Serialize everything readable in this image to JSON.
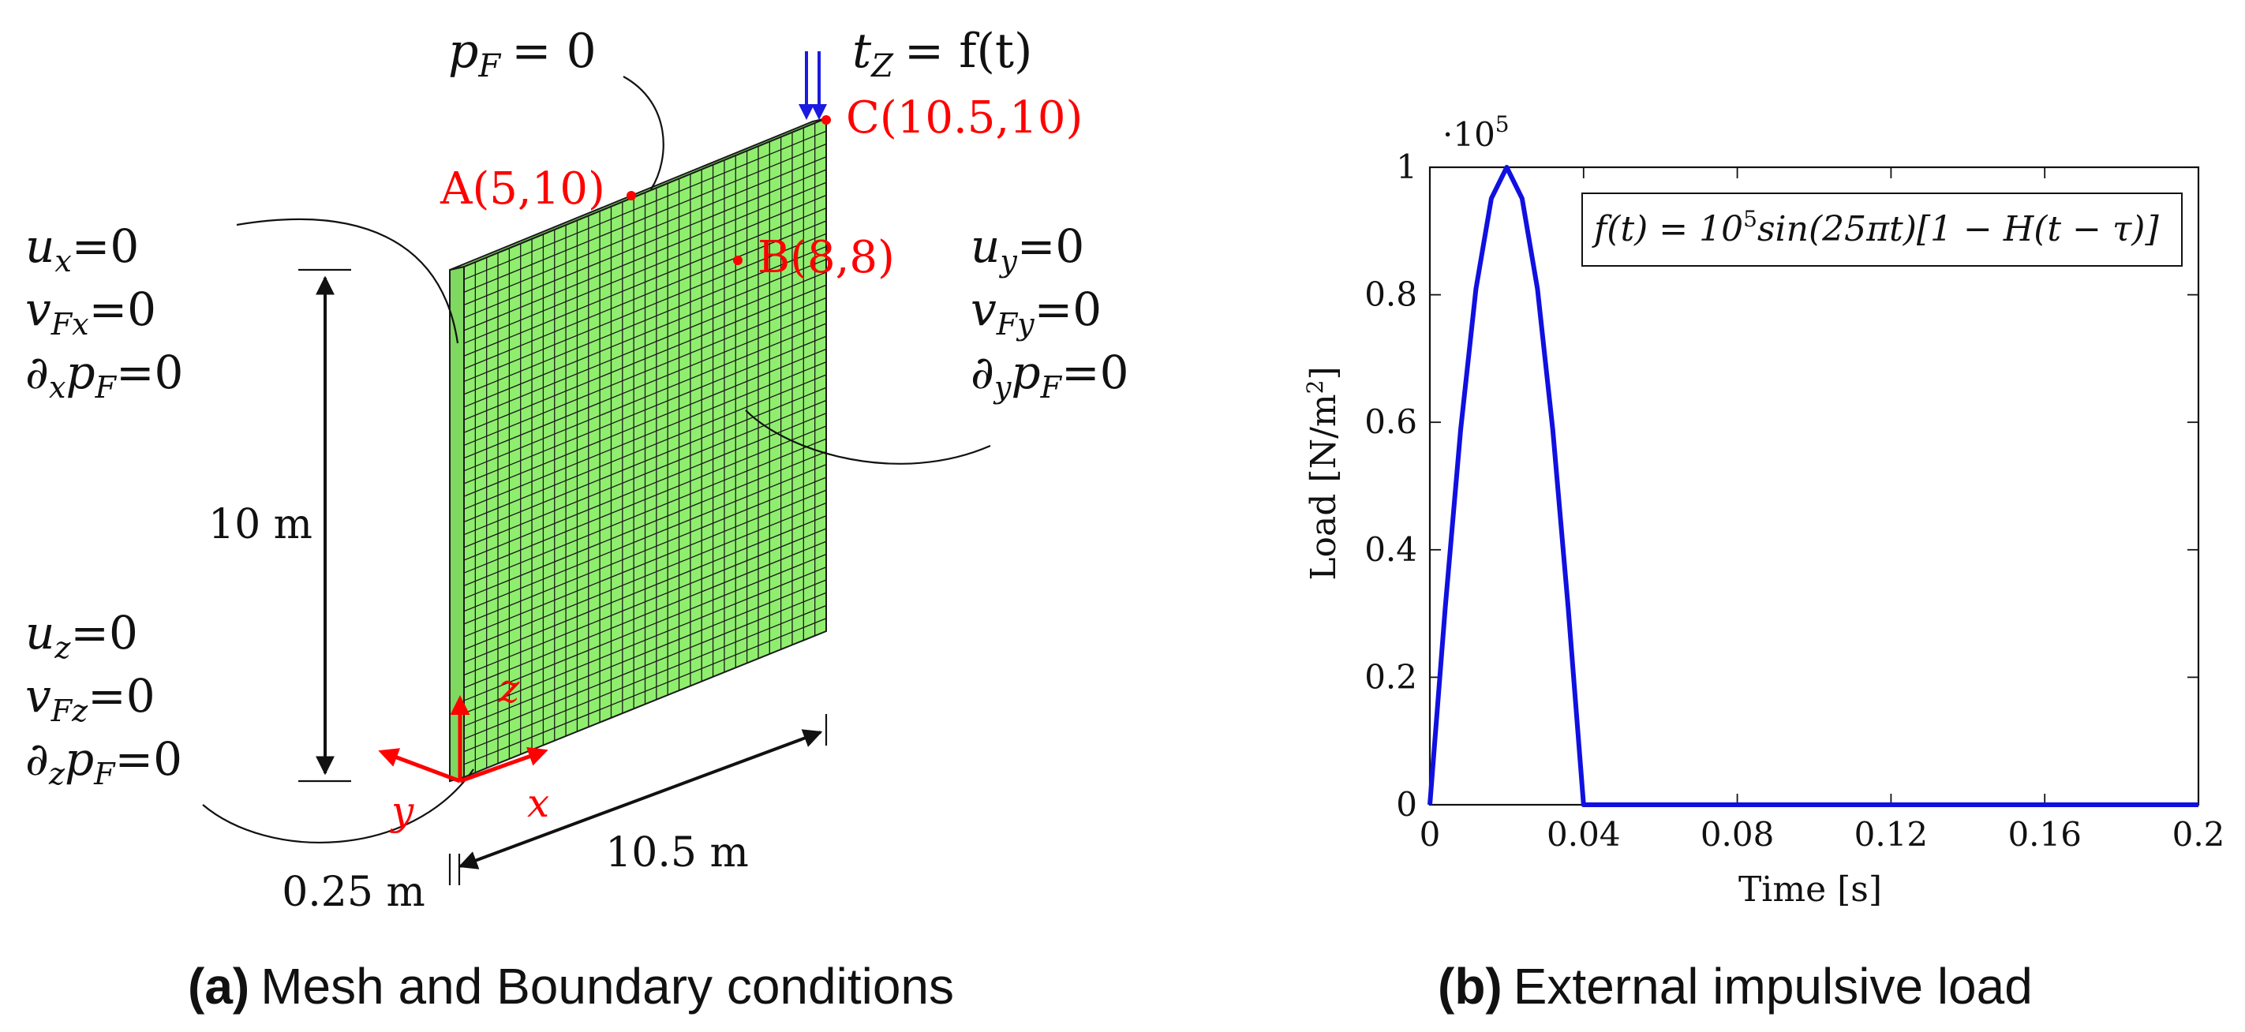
{
  "colors": {
    "plate_fill": "#90ee6e",
    "mesh_line": "#1a1a1a",
    "annotation_red": "#ff0000",
    "load_blue": "#1a1ae0",
    "curve_blue": "#1010e0",
    "text_black": "#111111"
  },
  "panel_a": {
    "caption_label": "(a)",
    "caption_text": "Mesh and Boundary conditions",
    "top_bc": {
      "p": "p",
      "sub": "F",
      "rhs": "= 0"
    },
    "load": {
      "t": "t",
      "sub": "Z",
      "rhs": "= f(t)"
    },
    "points": {
      "A": "A(5,10)",
      "B": "B(8,8)",
      "C": "C(10.5,10)"
    },
    "left_bc": {
      "u": "u",
      "u_sub": "x",
      "u_rhs": "=0",
      "v": "v",
      "v_sub": "Fx",
      "v_rhs": "=0",
      "d": "∂",
      "d_sub": "x",
      "p": "p",
      "p_sub": "F",
      "d_rhs": "=0"
    },
    "right_bc": {
      "u": "u",
      "u_sub": "y",
      "u_rhs": "=0",
      "v": "v",
      "v_sub": "Fy",
      "v_rhs": "=0",
      "d": "∂",
      "d_sub": "y",
      "p": "p",
      "p_sub": "F",
      "d_rhs": "=0"
    },
    "bottom_bc": {
      "u": "u",
      "u_sub": "z",
      "u_rhs": "=0",
      "v": "v",
      "v_sub": "Fz",
      "v_rhs": "=0",
      "d": "∂",
      "d_sub": "z",
      "p": "p",
      "p_sub": "F",
      "d_rhs": "=0"
    },
    "dims": {
      "height": "10 m",
      "width": "10.5 m",
      "thickness": "0.25 m"
    },
    "axes": {
      "x": "x",
      "y": "y",
      "z": "z"
    },
    "mesh": {
      "cols": 32,
      "rows": 40
    }
  },
  "panel_b": {
    "caption_label": "(b)",
    "caption_text": "External impulsive load",
    "legend": {
      "lhs": "f(t) = 10",
      "exp": "5",
      "rhs": "sin(25πt)[1 − H(t − τ)]"
    },
    "multiplier": {
      "base": "·10",
      "exp": "5"
    }
  },
  "chart_data": {
    "type": "line",
    "title": "",
    "xlabel": "Time [s]",
    "ylabel_main": "Load [N/m",
    "ylabel_exp": "2",
    "ylabel_end": "]",
    "xlim": [
      0,
      0.2
    ],
    "ylim": [
      0,
      1
    ],
    "y_multiplier": 100000,
    "xticks": [
      0,
      0.04,
      0.08,
      0.12,
      0.16,
      0.2
    ],
    "xtick_labels": [
      "0",
      "0.04",
      "0.08",
      "0.12",
      "0.16",
      "0.2"
    ],
    "yticks": [
      0,
      0.2,
      0.4,
      0.6,
      0.8,
      1
    ],
    "ytick_labels": [
      "0",
      "0.2",
      "0.4",
      "0.6",
      "0.8",
      "1"
    ],
    "series": [
      {
        "name": "f(t) = 10^5 sin(25πt)[1 − H(t − τ)]",
        "x": [
          0,
          0.004,
          0.008,
          0.012,
          0.016,
          0.02,
          0.024,
          0.028,
          0.032,
          0.036,
          0.04,
          0.08,
          0.12,
          0.16,
          0.2
        ],
        "y": [
          0,
          0.309,
          0.588,
          0.809,
          0.951,
          1.0,
          0.951,
          0.809,
          0.588,
          0.309,
          0,
          0,
          0,
          0,
          0
        ]
      }
    ]
  }
}
